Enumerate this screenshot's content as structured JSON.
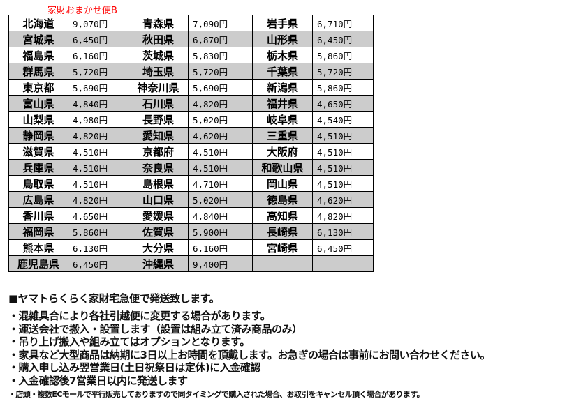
{
  "caption": "家財おまかせ便B",
  "rows": [
    [
      [
        "北海道",
        "9,070円"
      ],
      [
        "青森県",
        "7,090円"
      ],
      [
        "岩手県",
        "6,710円"
      ]
    ],
    [
      [
        "宮城県",
        "6,450円"
      ],
      [
        "秋田県",
        "6,870円"
      ],
      [
        "山形県",
        "6,450円"
      ]
    ],
    [
      [
        "福島県",
        "6,160円"
      ],
      [
        "茨城県",
        "5,830円"
      ],
      [
        "栃木県",
        "5,860円"
      ]
    ],
    [
      [
        "群馬県",
        "5,720円"
      ],
      [
        "埼玉県",
        "5,720円"
      ],
      [
        "千葉県",
        "5,720円"
      ]
    ],
    [
      [
        "東京都",
        "5,690円"
      ],
      [
        "神奈川県",
        "5,690円"
      ],
      [
        "新潟県",
        "5,860円"
      ]
    ],
    [
      [
        "富山県",
        "4,840円"
      ],
      [
        "石川県",
        "4,820円"
      ],
      [
        "福井県",
        "4,650円"
      ]
    ],
    [
      [
        "山梨県",
        "4,980円"
      ],
      [
        "長野県",
        "5,020円"
      ],
      [
        "岐阜県",
        "4,540円"
      ]
    ],
    [
      [
        "静岡県",
        "4,820円"
      ],
      [
        "愛知県",
        "4,620円"
      ],
      [
        "三重県",
        "4,510円"
      ]
    ],
    [
      [
        "滋賀県",
        "4,510円"
      ],
      [
        "京都府",
        "4,510円"
      ],
      [
        "大阪府",
        "4,510円"
      ]
    ],
    [
      [
        "兵庫県",
        "4,510円"
      ],
      [
        "奈良県",
        "4,510円"
      ],
      [
        "和歌山県",
        "4,510円"
      ]
    ],
    [
      [
        "鳥取県",
        "4,510円"
      ],
      [
        "島根県",
        "4,710円"
      ],
      [
        "岡山県",
        "4,510円"
      ]
    ],
    [
      [
        "広島県",
        "4,820円"
      ],
      [
        "山口県",
        "5,020円"
      ],
      [
        "徳島県",
        "4,620円"
      ]
    ],
    [
      [
        "香川県",
        "4,650円"
      ],
      [
        "愛媛県",
        "4,840円"
      ],
      [
        "高知県",
        "4,820円"
      ]
    ],
    [
      [
        "福岡県",
        "5,860円"
      ],
      [
        "佐賀県",
        "5,900円"
      ],
      [
        "長崎県",
        "6,130円"
      ]
    ],
    [
      [
        "熊本県",
        "6,130円"
      ],
      [
        "大分県",
        "6,160円"
      ],
      [
        "宮崎県",
        "6,450円"
      ]
    ],
    [
      [
        "鹿児島県",
        "6,450円"
      ],
      [
        "沖縄県",
        "9,400円"
      ],
      [
        "",
        ""
      ]
    ]
  ],
  "heading": "■ヤマトらくらく家財宅急便で発送致します。",
  "bullets": [
    "・混雑具合により各社引越便に変更する場合があります。",
    "・運送会社で搬入・設置します（設置は組み立て済み商品のみ）",
    "・吊り上げ搬入や組み立てはオプションとなります。",
    "・家具など大型商品は納期に3日以上お時間を頂戴します。お急ぎの場合は事前にお問い合わせください。",
    "・購入申し込み翌営業日(土日祝祭日は定休)に入金確認",
    "・入金確認後7営業日以内に発送します"
  ],
  "note": "・店頭・複数ECモールで平行販売しておりますので同タイミングで購入された場合、お取引をキャンセル頂く場合があります。"
}
